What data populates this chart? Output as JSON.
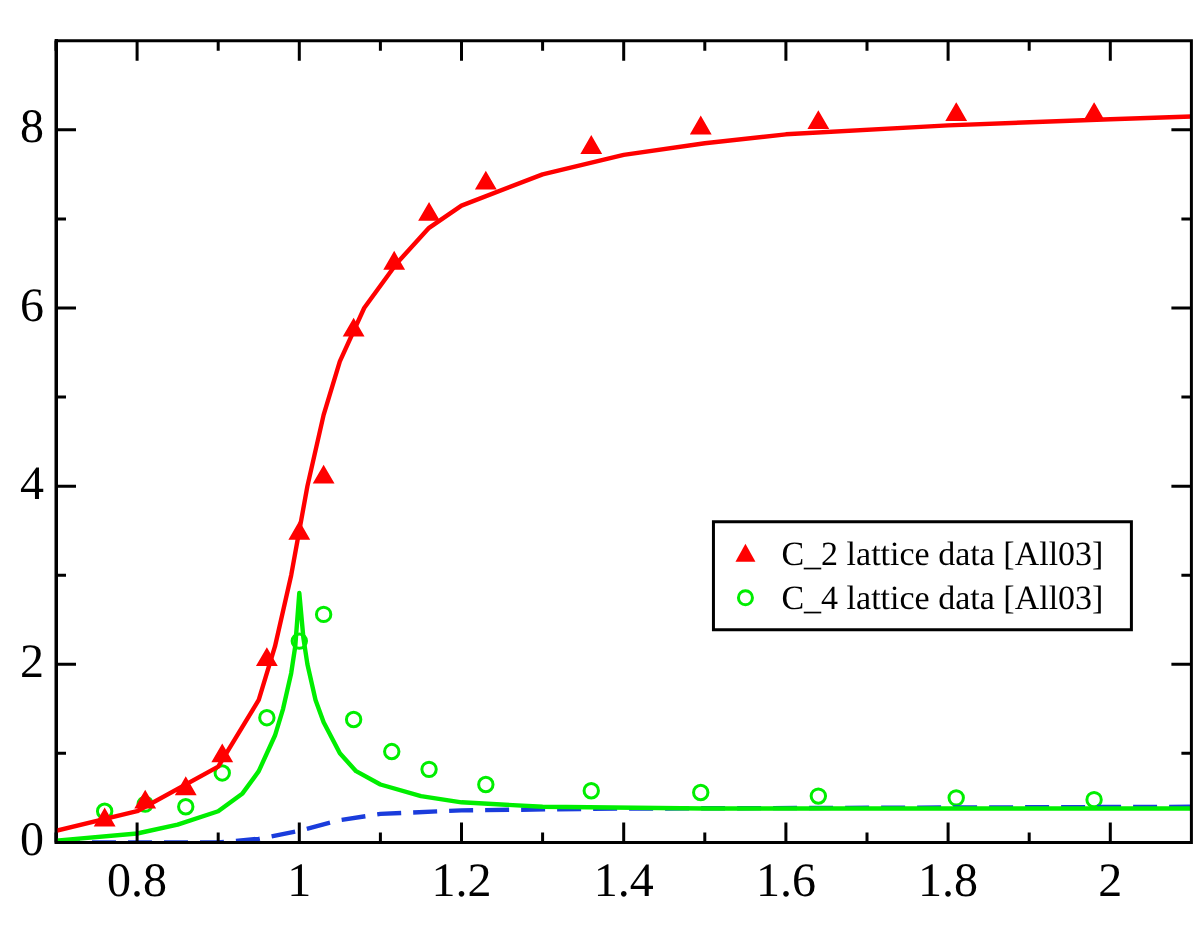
{
  "chart_data": {
    "type": "scatter",
    "xlim": [
      0.7,
      2.1
    ],
    "ylim": [
      0,
      9
    ],
    "xticks": [
      {
        "value": 0.7,
        "label": null
      },
      0.8,
      {
        "value": 0.9,
        "label": null
      },
      1,
      {
        "value": 1.1,
        "label": null
      },
      1.2,
      {
        "value": 1.3,
        "label": null
      },
      1.4,
      {
        "value": 1.5,
        "label": null
      },
      1.6,
      {
        "value": 1.7,
        "label": null
      },
      1.8,
      {
        "value": 1.9,
        "label": null
      },
      2
    ],
    "yticks": [
      0,
      {
        "value": 1,
        "label": null
      },
      2,
      {
        "value": 3,
        "label": null
      },
      4,
      {
        "value": 5,
        "label": null
      },
      6,
      {
        "value": 7,
        "label": null
      },
      8
    ],
    "grid": false,
    "legend": "right",
    "series": [
      {
        "type": "line",
        "color": "#ff0000",
        "marker": "none",
        "line_style": "solid",
        "x": [
          0.7,
          0.8,
          0.9,
          0.95,
          0.97,
          0.99,
          1.0,
          1.01,
          1.03,
          1.05,
          1.08,
          1.12,
          1.16,
          1.2,
          1.3,
          1.4,
          1.5,
          1.6,
          1.8,
          2.0,
          2.1
        ],
        "values": [
          0.13,
          0.35,
          0.85,
          1.6,
          2.2,
          3.0,
          3.5,
          4.0,
          4.8,
          5.4,
          6.0,
          6.5,
          6.9,
          7.15,
          7.5,
          7.72,
          7.85,
          7.95,
          8.05,
          8.12,
          8.15
        ]
      },
      {
        "type": "line",
        "color": "#00ee00",
        "marker": "none",
        "line_style": "solid",
        "x": [
          0.7,
          0.8,
          0.85,
          0.9,
          0.93,
          0.95,
          0.97,
          0.98,
          0.99,
          0.995,
          1.0,
          1.005,
          1.01,
          1.02,
          1.03,
          1.05,
          1.07,
          1.1,
          1.15,
          1.2,
          1.3,
          1.5,
          2.1
        ],
        "values": [
          0.02,
          0.1,
          0.2,
          0.35,
          0.55,
          0.8,
          1.2,
          1.5,
          1.9,
          2.2,
          2.8,
          2.3,
          2.0,
          1.6,
          1.35,
          1.0,
          0.8,
          0.65,
          0.52,
          0.45,
          0.4,
          0.38,
          0.38
        ]
      },
      {
        "type": "line",
        "color": "#1a3cdc",
        "marker": "none",
        "line_style": "dashed",
        "x": [
          0.7,
          0.9,
          0.95,
          1.0,
          1.05,
          1.1,
          1.2,
          1.4,
          2.1
        ],
        "values": [
          0,
          0,
          0.04,
          0.13,
          0.25,
          0.32,
          0.36,
          0.38,
          0.4
        ]
      },
      {
        "type": "scatter",
        "name": "C_2 lattice data [All03]",
        "color": "#ff0000",
        "marker": "triangle",
        "x": [
          0.76,
          0.81,
          0.86,
          0.905,
          0.96,
          1.0,
          1.03,
          1.067,
          1.117,
          1.16,
          1.23,
          1.36,
          1.495,
          1.64,
          1.81,
          1.98
        ],
        "values": [
          0.25,
          0.45,
          0.6,
          0.97,
          2.05,
          3.47,
          4.1,
          5.75,
          6.5,
          7.05,
          7.4,
          7.8,
          8.02,
          8.08,
          8.17,
          8.17
        ]
      },
      {
        "type": "scatter",
        "name": "C_4 lattice data [All03]",
        "color": "#00ee00",
        "marker": "circle",
        "x": [
          0.76,
          0.81,
          0.86,
          0.905,
          0.96,
          1.0,
          1.03,
          1.067,
          1.114,
          1.16,
          1.23,
          1.36,
          1.495,
          1.64,
          1.81,
          1.98
        ],
        "values": [
          0.35,
          0.43,
          0.4,
          0.78,
          1.4,
          2.26,
          2.56,
          1.38,
          1.02,
          0.82,
          0.65,
          0.58,
          0.56,
          0.52,
          0.5,
          0.48
        ]
      }
    ]
  }
}
